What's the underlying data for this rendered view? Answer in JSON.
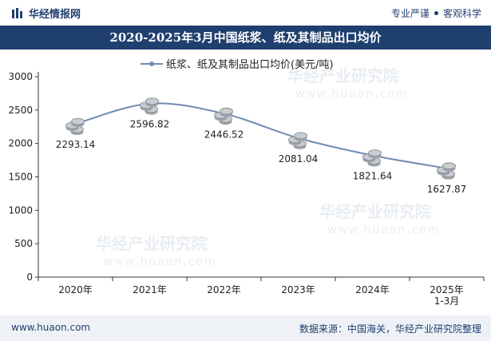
{
  "header": {
    "brand": "华经情报网",
    "tagline_a": "专业严谨",
    "tagline_b": "客观科学"
  },
  "footer": {
    "website": "www.huaon.com",
    "source": "数据来源：中国海关，华经产业研究院整理"
  },
  "watermark": {
    "text": "华经产业研究院",
    "url": "www.huaon.com"
  },
  "colors": {
    "line": "#6f8bb5",
    "title_bg": "#1f3f6e",
    "coin": "#c9ccd1"
  },
  "chart_data": {
    "type": "line",
    "title": "2020-2025年3月中国纸浆、纸及其制品出口均价",
    "categories": [
      "2020年",
      "2021年",
      "2022年",
      "2023年",
      "2024年",
      "2025年\n1-3月"
    ],
    "series": [
      {
        "name": "纸浆、纸及其制品出口均价(美元/吨)",
        "values": [
          2293.14,
          2596.82,
          2446.52,
          2081.04,
          1821.64,
          1627.87
        ]
      }
    ],
    "data_labels": [
      "2293.14",
      "2596.82",
      "2446.52",
      "2081.04",
      "1821.64",
      "1627.87"
    ],
    "yticks": [
      0,
      500,
      1000,
      1500,
      2000,
      2500,
      3000
    ],
    "ylim": [
      0,
      3000
    ],
    "xlabel": "",
    "ylabel": "",
    "legend_position": "top-center"
  }
}
